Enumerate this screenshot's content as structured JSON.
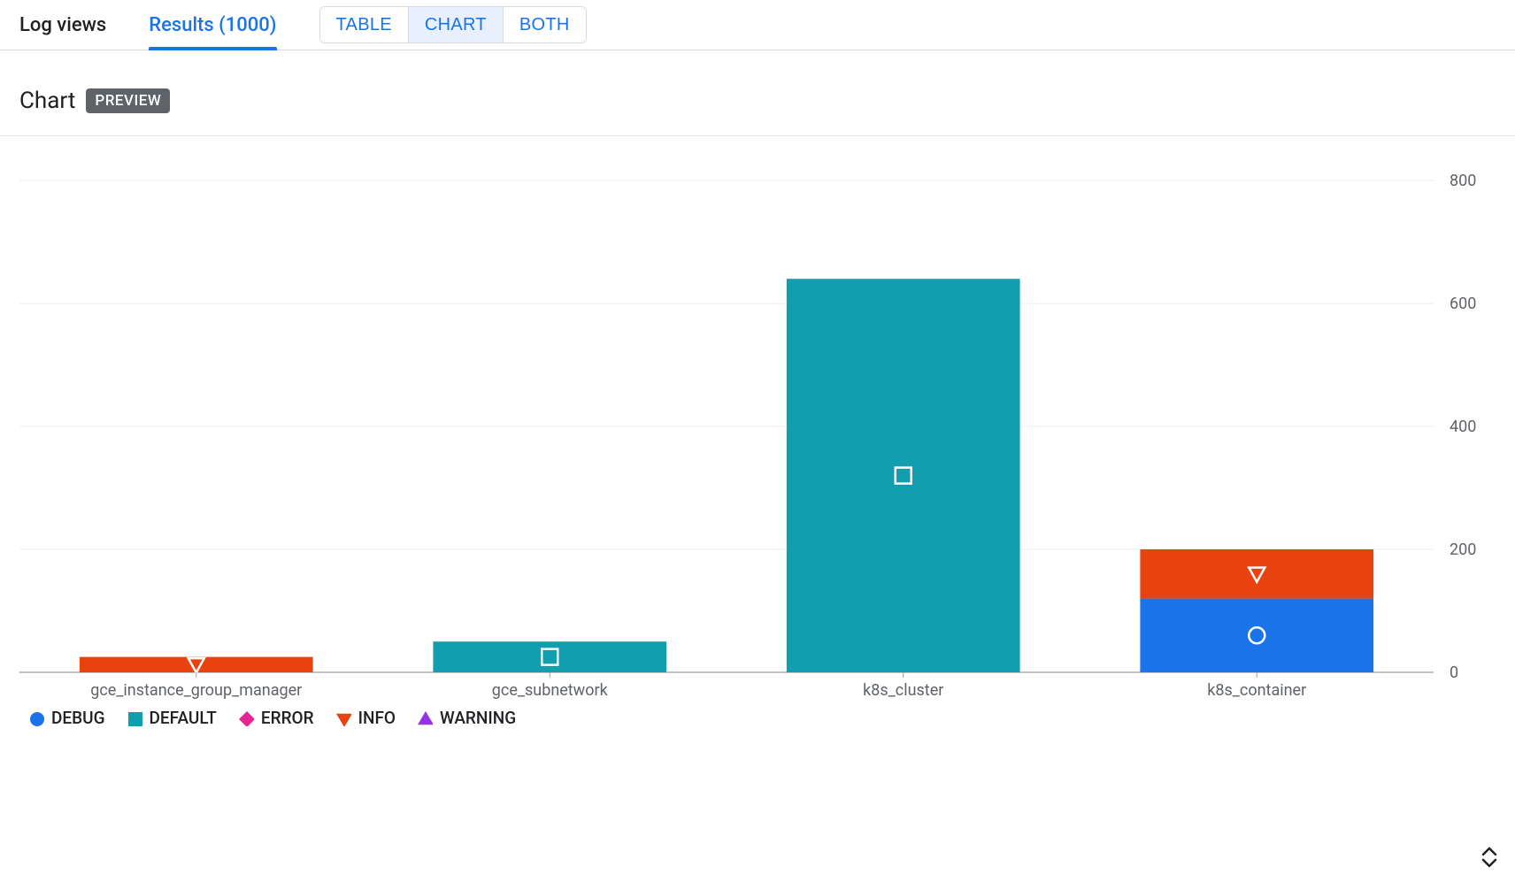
{
  "tabs": {
    "log_views": "Log views",
    "results_label": "Results (1000)"
  },
  "view_toggle": {
    "table": "TABLE",
    "chart": "CHART",
    "both": "BOTH",
    "active": "chart"
  },
  "section": {
    "title": "Chart",
    "badge": "PREVIEW"
  },
  "chart": {
    "type": "stacked-bar",
    "background_color": "#ffffff",
    "grid_color": "#ededed",
    "axis_color": "#9e9e9e",
    "tick_label_color": "#5f6368",
    "tick_fontsize": 18,
    "x_label_fontsize": 18,
    "ylim": [
      0,
      800
    ],
    "ytick_step": 200,
    "yticks": [
      0,
      200,
      400,
      600,
      800
    ],
    "categories": [
      "gce_instance_group_manager",
      "gce_subnetwork",
      "k8s_cluster",
      "k8s_container"
    ],
    "series": {
      "DEBUG": {
        "color": "#1a73e8",
        "marker": "circle-open"
      },
      "DEFAULT": {
        "color": "#129eaf",
        "marker": "square-open"
      },
      "ERROR": {
        "color": "#e52592",
        "marker": "diamond-filled"
      },
      "INFO": {
        "color": "#e8430e",
        "marker": "triangle-down-open"
      },
      "WARNING": {
        "color": "#9334e6",
        "marker": "triangle-up-filled"
      }
    },
    "stacks": [
      {
        "category": "gce_instance_group_manager",
        "segments": [
          {
            "series": "INFO",
            "value": 25
          }
        ]
      },
      {
        "category": "gce_subnetwork",
        "segments": [
          {
            "series": "DEFAULT",
            "value": 50
          }
        ]
      },
      {
        "category": "k8s_cluster",
        "segments": [
          {
            "series": "DEFAULT",
            "value": 640
          }
        ]
      },
      {
        "category": "k8s_container",
        "segments": [
          {
            "series": "DEBUG",
            "value": 120
          },
          {
            "series": "INFO",
            "value": 80
          }
        ]
      }
    ],
    "bar_width_ratio": 0.66,
    "marker_stroke": "#ffffff",
    "marker_size": 18
  },
  "legend_order": [
    "DEBUG",
    "DEFAULT",
    "ERROR",
    "INFO",
    "WARNING"
  ]
}
